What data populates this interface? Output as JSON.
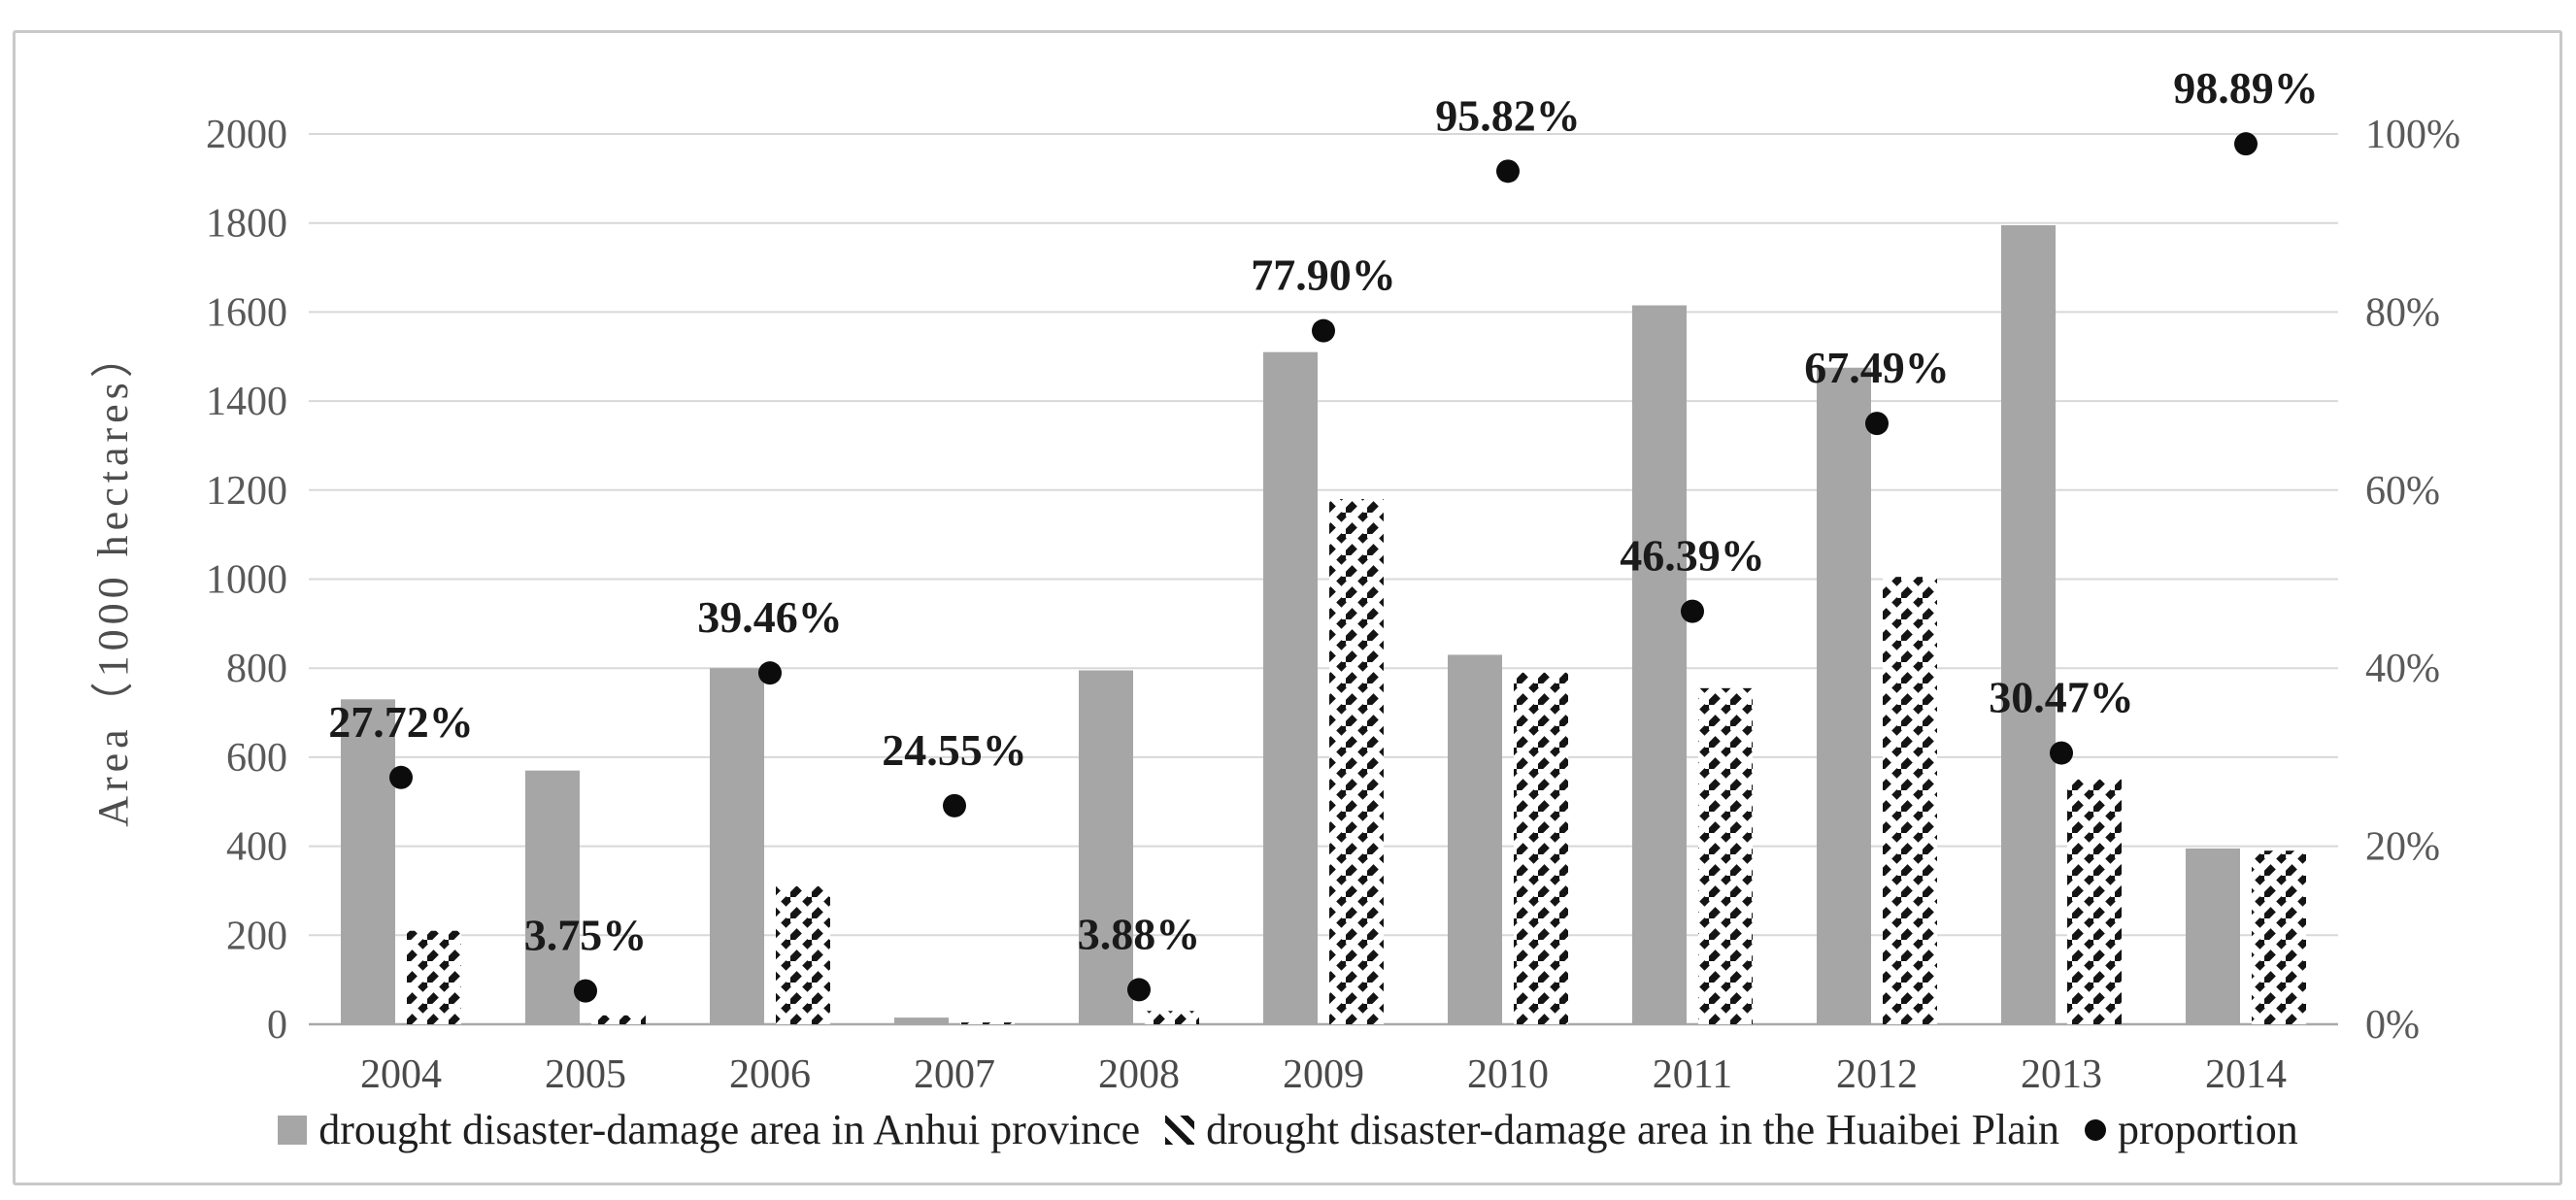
{
  "chart_data": {
    "type": "bar",
    "subtype": "combo-bar-and-scatter",
    "title": "",
    "categories": [
      "2004",
      "2005",
      "2006",
      "2007",
      "2008",
      "2009",
      "2010",
      "2011",
      "2012",
      "2013",
      "2014"
    ],
    "series": [
      {
        "name": "drought disaster-damage area in Anhui province",
        "type": "bar",
        "style": "solid-gray",
        "axis": "left",
        "values": [
          730,
          570,
          800,
          15,
          795,
          1510,
          830,
          1615,
          1475,
          1795,
          395
        ]
      },
      {
        "name": "drought disaster-damage area in the Huaibei Plain",
        "type": "bar",
        "style": "black-diagonal-hatch",
        "axis": "left",
        "values": [
          210,
          20,
          310,
          4,
          30,
          1180,
          790,
          755,
          1005,
          550,
          390
        ]
      },
      {
        "name": "proportion",
        "type": "scatter",
        "style": "black-dot",
        "axis": "right",
        "values": [
          27.72,
          3.75,
          39.46,
          24.55,
          3.88,
          77.9,
          95.82,
          46.39,
          67.49,
          30.47,
          98.89
        ],
        "labels": [
          "27.72%",
          "3.75%",
          "39.46%",
          "24.55%",
          "3.88%",
          "77.90%",
          "95.82%",
          "46.39%",
          "67.49%",
          "30.47%",
          "98.89%"
        ]
      }
    ],
    "xlabel": "",
    "ylabel": "Area（1000 hectares）",
    "left_axis": {
      "min": 0,
      "max": 2000,
      "step": 200,
      "tick_labels": [
        "0",
        "200",
        "400",
        "600",
        "800",
        "1000",
        "1200",
        "1400",
        "1600",
        "1800",
        "2000"
      ]
    },
    "right_axis": {
      "min": 0,
      "max": 100,
      "step": 20,
      "tick_labels": [
        "0%",
        "20%",
        "40%",
        "60%",
        "80%",
        "100%"
      ]
    },
    "grid": true,
    "legend_position": "bottom"
  },
  "colors": {
    "bar_solid": "#a6a6a6",
    "hatch_stroke": "#141414",
    "dot": "#0c0c0c",
    "gridline": "#d8d8d8",
    "baseline": "#a8a8a8",
    "tick_text": "#595959",
    "year_text": "#4a4a4a",
    "data_label": "#1a1a1a",
    "border": "#c9c9c9"
  }
}
